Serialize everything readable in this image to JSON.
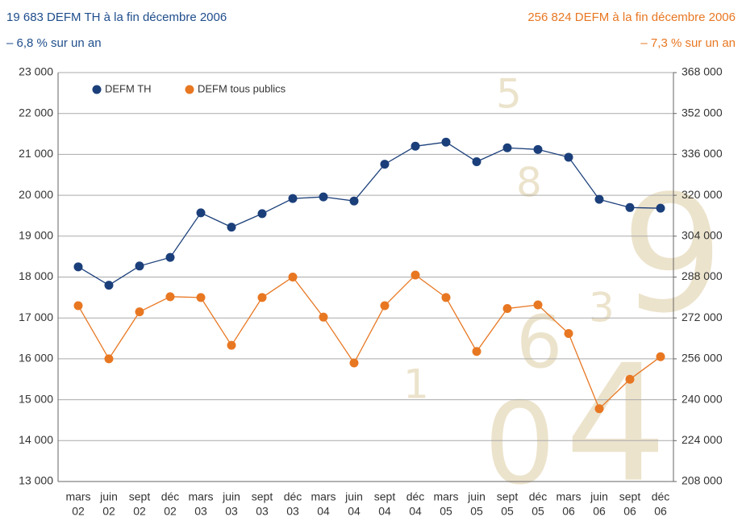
{
  "chart_data": {
    "type": "line",
    "title_left": "19 683 DEFM TH à la fin décembre 2006",
    "subtitle_left": "– 6,8 % sur un an",
    "title_right": "256 824 DEFM à la fin décembre 2006",
    "subtitle_right": "– 7,3 % sur un an",
    "categories": [
      [
        "mars",
        "02"
      ],
      [
        "juin",
        "02"
      ],
      [
        "sept",
        "02"
      ],
      [
        "déc",
        "02"
      ],
      [
        "mars",
        "03"
      ],
      [
        "juin",
        "03"
      ],
      [
        "sept",
        "03"
      ],
      [
        "déc",
        "03"
      ],
      [
        "mars",
        "04"
      ],
      [
        "juin",
        "04"
      ],
      [
        "sept",
        "04"
      ],
      [
        "déc",
        "04"
      ],
      [
        "mars",
        "05"
      ],
      [
        "juin",
        "05"
      ],
      [
        "sept",
        "05"
      ],
      [
        "déc",
        "05"
      ],
      [
        "mars",
        "06"
      ],
      [
        "juin",
        "06"
      ],
      [
        "sept",
        "06"
      ],
      [
        "déc",
        "06"
      ]
    ],
    "series": [
      {
        "name": "DEFM TH",
        "color": "#1b3f7a",
        "values": [
          18250,
          17800,
          18270,
          18480,
          19570,
          19220,
          19550,
          19920,
          19960,
          19860,
          20760,
          21200,
          21300,
          20820,
          21160,
          21120,
          20930,
          19900,
          19700,
          19683
        ]
      },
      {
        "name": "DEFM tous publics",
        "color": "#e87722",
        "axis": "y2",
        "values": [
          276800,
          256000,
          274400,
          280320,
          280000,
          261280,
          280000,
          288000,
          272320,
          254400,
          276800,
          288800,
          280000,
          258880,
          275680,
          277120,
          265920,
          236480,
          248000,
          256824
        ]
      }
    ],
    "ylim": [
      13000,
      23000
    ],
    "yticks": [
      {
        "value": 13000,
        "label": "13 000"
      },
      {
        "value": 14000,
        "label": "14 000"
      },
      {
        "value": 15000,
        "label": "15 000"
      },
      {
        "value": 16000,
        "label": "16 000"
      },
      {
        "value": 17000,
        "label": "17 000"
      },
      {
        "value": 18000,
        "label": "18 000"
      },
      {
        "value": 19000,
        "label": "19 000"
      },
      {
        "value": 20000,
        "label": "20 000"
      },
      {
        "value": 21000,
        "label": "21 000"
      },
      {
        "value": 22000,
        "label": "22 000"
      },
      {
        "value": 23000,
        "label": "23 000"
      }
    ],
    "y2lim": [
      208000,
      368000
    ],
    "y2ticks": [
      {
        "value": 208000,
        "label": "208 000"
      },
      {
        "value": 224000,
        "label": "224 000"
      },
      {
        "value": 240000,
        "label": "240 000"
      },
      {
        "value": 256000,
        "label": "256 000"
      },
      {
        "value": 272000,
        "label": "272 000"
      },
      {
        "value": 288000,
        "label": "288 000"
      },
      {
        "value": 304000,
        "label": "304 000"
      },
      {
        "value": 320000,
        "label": "320 000"
      },
      {
        "value": 336000,
        "label": "336 000"
      },
      {
        "value": 352000,
        "label": "352 000"
      },
      {
        "value": 368000,
        "label": "368 000"
      }
    ],
    "grid": true
  }
}
